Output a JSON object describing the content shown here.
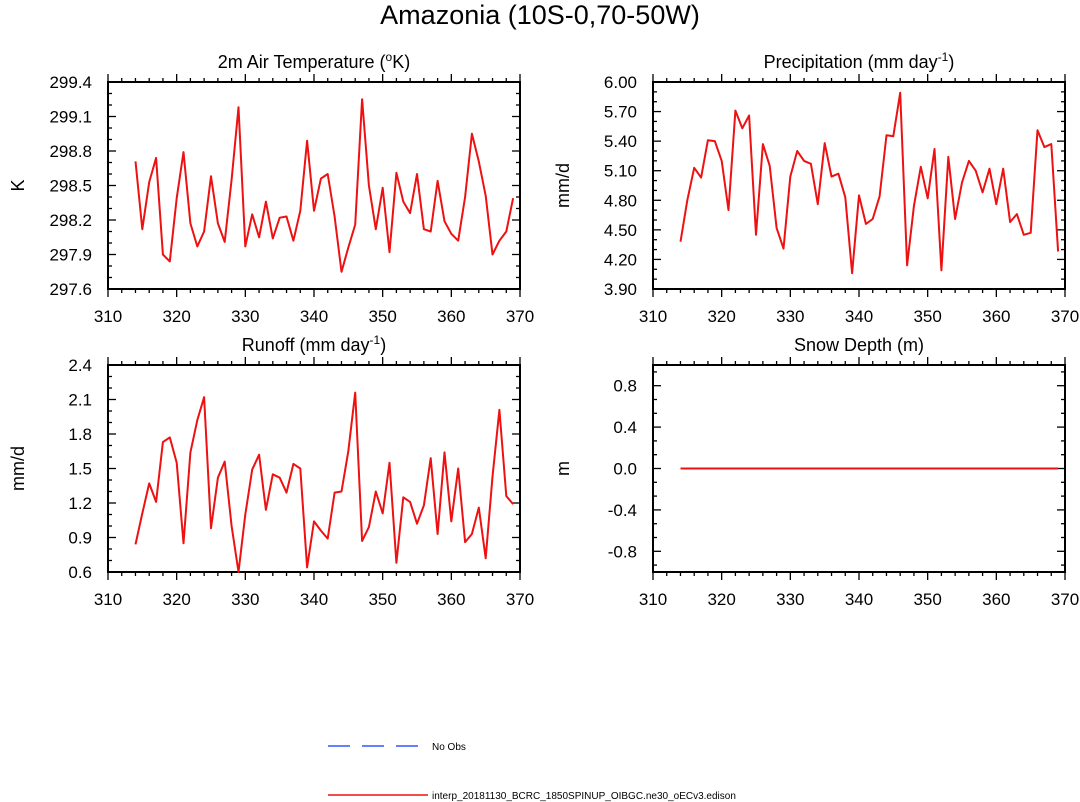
{
  "figure": {
    "title": "Amazonia (10S-0,70-50W)",
    "legend": [
      {
        "label": "No Obs",
        "color": "#3355ff",
        "style": "dashed"
      },
      {
        "label": "interp_20181130_BCRC_1850SPINUP_OIBGC.ne30_oECv3.edison",
        "color": "#ee1111",
        "style": "solid"
      }
    ]
  },
  "chart_data": [
    {
      "type": "line",
      "title": "2m Air Temperature (",
      "title_sup": "o",
      "title_after": "K)",
      "xlabel": "",
      "ylabel": "K",
      "xlim": [
        310,
        370
      ],
      "ylim": [
        297.6,
        299.4
      ],
      "xticks": [
        "310",
        "320",
        "330",
        "340",
        "350",
        "360",
        "370"
      ],
      "yticks": [
        "297.6",
        "297.9",
        "298.2",
        "298.5",
        "298.8",
        "299.1",
        "299.4"
      ],
      "x": [
        314,
        315,
        316,
        317,
        318,
        319,
        320,
        321,
        322,
        323,
        324,
        325,
        326,
        327,
        328,
        329,
        330,
        331,
        332,
        333,
        334,
        335,
        336,
        337,
        338,
        339,
        340,
        341,
        342,
        343,
        344,
        345,
        346,
        347,
        348,
        349,
        350,
        351,
        352,
        353,
        354,
        355,
        356,
        357,
        358,
        359,
        360,
        361,
        362,
        363,
        364,
        365,
        366,
        367,
        368,
        369
      ],
      "series": [
        {
          "name": "interp_20181130_BCRC_1850SPINUP_OIBGC.ne30_oECv3.edison",
          "color": "#ee1111",
          "values": [
            298.71,
            298.12,
            298.53,
            298.74,
            297.9,
            297.84,
            298.39,
            298.79,
            298.17,
            297.97,
            298.1,
            298.58,
            298.17,
            298.01,
            298.55,
            299.18,
            297.97,
            298.25,
            298.05,
            298.36,
            298.04,
            298.22,
            298.23,
            298.02,
            298.28,
            298.89,
            298.28,
            298.56,
            298.6,
            298.23,
            297.75,
            297.96,
            298.16,
            299.25,
            298.5,
            298.12,
            298.48,
            297.92,
            298.61,
            298.36,
            298.26,
            298.6,
            298.12,
            298.1,
            298.54,
            298.19,
            298.08,
            298.02,
            298.4,
            298.95,
            298.71,
            298.41,
            297.9,
            298.02,
            298.1,
            298.39
          ]
        }
      ]
    },
    {
      "type": "line",
      "title": "Precipitation (mm day",
      "title_sup": "-1",
      "title_after": ")",
      "xlabel": "",
      "ylabel": "mm/d",
      "xlim": [
        310,
        370
      ],
      "ylim": [
        3.9,
        6.0
      ],
      "xticks": [
        "310",
        "320",
        "330",
        "340",
        "350",
        "360",
        "370"
      ],
      "yticks": [
        "3.90",
        "4.20",
        "4.50",
        "4.80",
        "5.10",
        "5.40",
        "5.70",
        "6.00"
      ],
      "x": [
        314,
        315,
        316,
        317,
        318,
        319,
        320,
        321,
        322,
        323,
        324,
        325,
        326,
        327,
        328,
        329,
        330,
        331,
        332,
        333,
        334,
        335,
        336,
        337,
        338,
        339,
        340,
        341,
        342,
        343,
        344,
        345,
        346,
        347,
        348,
        349,
        350,
        351,
        352,
        353,
        354,
        355,
        356,
        357,
        358,
        359,
        360,
        361,
        362,
        363,
        364,
        365,
        366,
        367,
        368,
        369
      ],
      "series": [
        {
          "name": "interp_20181130_BCRC_1850SPINUP_OIBGC.ne30_oECv3.edison",
          "color": "#ee1111",
          "values": [
            4.38,
            4.8,
            5.13,
            5.03,
            5.41,
            5.4,
            5.2,
            4.7,
            5.71,
            5.53,
            5.66,
            4.45,
            5.37,
            5.15,
            4.52,
            4.31,
            5.04,
            5.3,
            5.2,
            5.17,
            4.76,
            5.38,
            5.04,
            5.07,
            4.83,
            4.06,
            4.85,
            4.56,
            4.61,
            4.84,
            5.46,
            5.45,
            5.89,
            4.14,
            4.74,
            5.14,
            4.82,
            5.32,
            4.09,
            5.24,
            4.61,
            4.98,
            5.2,
            5.1,
            4.88,
            5.12,
            4.76,
            5.12,
            4.58,
            4.66,
            4.45,
            4.47,
            5.51,
            5.34,
            5.37,
            4.28
          ]
        }
      ]
    },
    {
      "type": "line",
      "title": "Runoff (mm day",
      "title_sup": "-1",
      "title_after": ")",
      "xlabel": "",
      "ylabel": "mm/d",
      "xlim": [
        310,
        370
      ],
      "ylim": [
        0.6,
        2.4
      ],
      "xticks": [
        "310",
        "320",
        "330",
        "340",
        "350",
        "360",
        "370"
      ],
      "yticks": [
        "0.6",
        "0.9",
        "1.2",
        "1.5",
        "1.8",
        "2.1",
        "2.4"
      ],
      "x": [
        314,
        315,
        316,
        317,
        318,
        319,
        320,
        321,
        322,
        323,
        324,
        325,
        326,
        327,
        328,
        329,
        330,
        331,
        332,
        333,
        334,
        335,
        336,
        337,
        338,
        339,
        340,
        341,
        342,
        343,
        344,
        345,
        346,
        347,
        348,
        349,
        350,
        351,
        352,
        353,
        354,
        355,
        356,
        357,
        358,
        359,
        360,
        361,
        362,
        363,
        364,
        365,
        366,
        367,
        368,
        369
      ],
      "series": [
        {
          "name": "interp_20181130_BCRC_1850SPINUP_OIBGC.ne30_oECv3.edison",
          "color": "#ee1111",
          "values": [
            0.84,
            1.11,
            1.37,
            1.21,
            1.73,
            1.77,
            1.55,
            0.85,
            1.64,
            1.92,
            2.12,
            0.98,
            1.42,
            1.56,
            1.0,
            0.6,
            1.1,
            1.49,
            1.62,
            1.14,
            1.45,
            1.42,
            1.29,
            1.54,
            1.5,
            0.64,
            1.04,
            0.96,
            0.89,
            1.29,
            1.3,
            1.65,
            2.16,
            0.87,
            0.99,
            1.3,
            1.11,
            1.55,
            0.68,
            1.25,
            1.21,
            1.02,
            1.18,
            1.59,
            0.93,
            1.64,
            1.04,
            1.5,
            0.86,
            0.93,
            1.16,
            0.72,
            1.43,
            2.01,
            1.26,
            1.19
          ]
        }
      ]
    },
    {
      "type": "line",
      "title": "Snow Depth (m)",
      "title_sup": "",
      "title_after": "",
      "xlabel": "",
      "ylabel": "m",
      "xlim": [
        310,
        370
      ],
      "ylim": [
        -1.0,
        1.0
      ],
      "xticks": [
        "310",
        "320",
        "330",
        "340",
        "350",
        "360",
        "370"
      ],
      "yticks": [
        "-0.8",
        "-0.4",
        "0.0",
        "0.4",
        "0.8"
      ],
      "x": [
        314,
        315,
        316,
        317,
        318,
        319,
        320,
        321,
        322,
        323,
        324,
        325,
        326,
        327,
        328,
        329,
        330,
        331,
        332,
        333,
        334,
        335,
        336,
        337,
        338,
        339,
        340,
        341,
        342,
        343,
        344,
        345,
        346,
        347,
        348,
        349,
        350,
        351,
        352,
        353,
        354,
        355,
        356,
        357,
        358,
        359,
        360,
        361,
        362,
        363,
        364,
        365,
        366,
        367,
        368,
        369
      ],
      "series": [
        {
          "name": "interp_20181130_BCRC_1850SPINUP_OIBGC.ne30_oECv3.edison",
          "color": "#ee1111",
          "values": [
            0,
            0,
            0,
            0,
            0,
            0,
            0,
            0,
            0,
            0,
            0,
            0,
            0,
            0,
            0,
            0,
            0,
            0,
            0,
            0,
            0,
            0,
            0,
            0,
            0,
            0,
            0,
            0,
            0,
            0,
            0,
            0,
            0,
            0,
            0,
            0,
            0,
            0,
            0,
            0,
            0,
            0,
            0,
            0,
            0,
            0,
            0,
            0,
            0,
            0,
            0,
            0,
            0,
            0,
            0,
            0
          ]
        }
      ]
    }
  ]
}
